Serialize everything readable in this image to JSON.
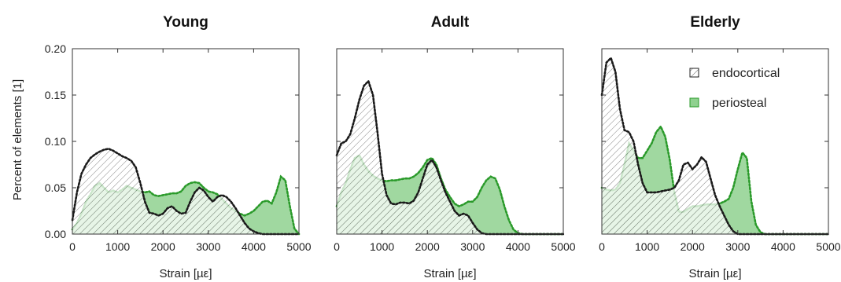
{
  "chart_data": {
    "type": "area",
    "ylabel": "Percent of elements [1]",
    "xlabel": "Strain [µε]",
    "xlim": [
      0,
      5000
    ],
    "ylim": [
      0,
      0.2
    ],
    "xticks": [
      "0",
      "1000",
      "2000",
      "3000",
      "4000",
      "5000"
    ],
    "yticks": [
      "0.00",
      "0.05",
      "0.10",
      "0.15",
      "0.20"
    ],
    "grid": false,
    "legend": {
      "placement": "top-right of the Elderly panel",
      "entries": [
        {
          "label": "endocortical",
          "style": "hatched",
          "color": "#222222"
        },
        {
          "label": "periosteal",
          "style": "filled",
          "color": "#7ccd7c",
          "edge": "#2e9b2e"
        }
      ]
    },
    "colors": {
      "endocortical_edge": "#1a1a1a",
      "periosteal_fill": "#8fd18f",
      "periosteal_edge": "#2a9a2a",
      "hatch": "#555555"
    },
    "panels": [
      {
        "title": "Young",
        "series": [
          {
            "name": "endocortical",
            "x": [
              0,
              100,
              200,
              300,
              400,
              500,
              600,
              700,
              800,
              900,
              1000,
              1100,
              1200,
              1300,
              1400,
              1500,
              1600,
              1700,
              1800,
              1900,
              2000,
              2100,
              2200,
              2300,
              2400,
              2500,
              2600,
              2700,
              2800,
              2900,
              3000,
              3100,
              3200,
              3300,
              3400,
              3500,
              3600,
              3700,
              3800,
              3900,
              4000,
              4100,
              4200,
              4300,
              4400,
              4500,
              4600,
              4700,
              4800,
              4900,
              5000
            ],
            "y": [
              0.015,
              0.045,
              0.065,
              0.075,
              0.082,
              0.086,
              0.089,
              0.091,
              0.092,
              0.09,
              0.087,
              0.084,
              0.082,
              0.079,
              0.072,
              0.055,
              0.035,
              0.023,
              0.022,
              0.02,
              0.022,
              0.028,
              0.03,
              0.025,
              0.022,
              0.023,
              0.035,
              0.045,
              0.05,
              0.047,
              0.04,
              0.035,
              0.04,
              0.042,
              0.04,
              0.035,
              0.028,
              0.02,
              0.012,
              0.006,
              0.003,
              0.001,
              0.0,
              0.0,
              0.0,
              0.0,
              0.0,
              0.0,
              0.0,
              0.0,
              0.0
            ]
          },
          {
            "name": "periosteal",
            "x": [
              0,
              100,
              200,
              300,
              400,
              500,
              600,
              700,
              800,
              900,
              1000,
              1100,
              1200,
              1300,
              1400,
              1500,
              1600,
              1700,
              1800,
              1900,
              2000,
              2100,
              2200,
              2300,
              2400,
              2500,
              2600,
              2700,
              2800,
              2900,
              3000,
              3100,
              3200,
              3300,
              3400,
              3500,
              3600,
              3700,
              3800,
              3900,
              4000,
              4100,
              4200,
              4300,
              4400,
              4500,
              4600,
              4700,
              4800,
              4900,
              5000
            ],
            "y": [
              0.005,
              0.012,
              0.022,
              0.035,
              0.043,
              0.052,
              0.055,
              0.05,
              0.045,
              0.047,
              0.045,
              0.048,
              0.052,
              0.05,
              0.048,
              0.046,
              0.045,
              0.046,
              0.042,
              0.041,
              0.042,
              0.043,
              0.044,
              0.044,
              0.046,
              0.052,
              0.055,
              0.056,
              0.055,
              0.05,
              0.046,
              0.045,
              0.043,
              0.038,
              0.033,
              0.028,
              0.025,
              0.022,
              0.02,
              0.022,
              0.025,
              0.03,
              0.035,
              0.036,
              0.033,
              0.045,
              0.062,
              0.058,
              0.03,
              0.006,
              0.0
            ]
          }
        ]
      },
      {
        "title": "Adult",
        "series": [
          {
            "name": "endocortical",
            "x": [
              0,
              100,
              200,
              300,
              400,
              500,
              600,
              700,
              800,
              900,
              1000,
              1100,
              1200,
              1300,
              1400,
              1500,
              1600,
              1700,
              1800,
              1900,
              2000,
              2100,
              2200,
              2300,
              2400,
              2500,
              2600,
              2700,
              2800,
              2900,
              3000,
              3100,
              3200,
              3300,
              3400,
              3500,
              3600,
              3700,
              3800,
              3900,
              4000,
              4100,
              4200,
              4300,
              4400,
              4500,
              4600,
              4700,
              4800,
              4900,
              5000
            ],
            "y": [
              0.085,
              0.098,
              0.1,
              0.108,
              0.125,
              0.145,
              0.16,
              0.165,
              0.15,
              0.11,
              0.065,
              0.042,
              0.033,
              0.032,
              0.034,
              0.034,
              0.033,
              0.036,
              0.045,
              0.06,
              0.075,
              0.08,
              0.072,
              0.058,
              0.045,
              0.035,
              0.025,
              0.02,
              0.022,
              0.02,
              0.012,
              0.005,
              0.001,
              0.0,
              0.0,
              0.0,
              0.0,
              0.0,
              0.0,
              0.0,
              0.0,
              0.0,
              0.0,
              0.0,
              0.0,
              0.0,
              0.0,
              0.0,
              0.0,
              0.0,
              0.0
            ]
          },
          {
            "name": "periosteal",
            "x": [
              0,
              100,
              200,
              300,
              400,
              500,
              600,
              700,
              800,
              900,
              1000,
              1100,
              1200,
              1300,
              1400,
              1500,
              1600,
              1700,
              1800,
              1900,
              2000,
              2100,
              2200,
              2300,
              2400,
              2500,
              2600,
              2700,
              2800,
              2900,
              3000,
              3100,
              3200,
              3300,
              3400,
              3500,
              3600,
              3700,
              3800,
              3900,
              4000,
              4100,
              4200,
              4300,
              4400,
              4500,
              4600,
              4700,
              4800,
              4900,
              5000
            ],
            "y": [
              0.03,
              0.045,
              0.055,
              0.07,
              0.082,
              0.085,
              0.075,
              0.068,
              0.063,
              0.06,
              0.058,
              0.057,
              0.058,
              0.058,
              0.059,
              0.06,
              0.06,
              0.062,
              0.066,
              0.072,
              0.08,
              0.082,
              0.075,
              0.06,
              0.048,
              0.04,
              0.033,
              0.03,
              0.032,
              0.035,
              0.035,
              0.04,
              0.05,
              0.058,
              0.062,
              0.06,
              0.048,
              0.03,
              0.015,
              0.005,
              0.001,
              0.0,
              0.0,
              0.0,
              0.0,
              0.0,
              0.0,
              0.0,
              0.0,
              0.0,
              0.0
            ]
          }
        ]
      },
      {
        "title": "Elderly",
        "series": [
          {
            "name": "endocortical",
            "x": [
              0,
              100,
              200,
              300,
              400,
              500,
              600,
              700,
              800,
              900,
              1000,
              1100,
              1200,
              1300,
              1400,
              1500,
              1600,
              1700,
              1800,
              1900,
              2000,
              2100,
              2200,
              2300,
              2400,
              2500,
              2600,
              2700,
              2800,
              2900,
              3000,
              3100,
              3200,
              3300,
              3400,
              3500,
              3600,
              3700,
              3800,
              3900,
              4000,
              4100,
              4200,
              4300,
              4400,
              4500,
              4600,
              4700,
              4800,
              4900,
              5000
            ],
            "y": [
              0.15,
              0.185,
              0.19,
              0.175,
              0.135,
              0.112,
              0.11,
              0.1,
              0.075,
              0.055,
              0.045,
              0.045,
              0.045,
              0.046,
              0.047,
              0.048,
              0.05,
              0.058,
              0.075,
              0.077,
              0.07,
              0.075,
              0.083,
              0.078,
              0.06,
              0.042,
              0.03,
              0.02,
              0.01,
              0.003,
              0.0,
              0.0,
              0.0,
              0.0,
              0.0,
              0.0,
              0.0,
              0.0,
              0.0,
              0.0,
              0.0,
              0.0,
              0.0,
              0.0,
              0.0,
              0.0,
              0.0,
              0.0,
              0.0,
              0.0,
              0.0
            ]
          },
          {
            "name": "periosteal",
            "x": [
              0,
              100,
              200,
              300,
              400,
              500,
              600,
              700,
              800,
              900,
              1000,
              1100,
              1200,
              1300,
              1400,
              1500,
              1600,
              1700,
              1800,
              1900,
              2000,
              2100,
              2200,
              2300,
              2400,
              2500,
              2600,
              2700,
              2800,
              2900,
              3000,
              3100,
              3200,
              3300,
              3400,
              3500,
              3600,
              3700,
              3800,
              3900,
              4000,
              4100,
              4200,
              4300,
              4400,
              4500,
              4600,
              4700,
              4800,
              4900,
              5000
            ],
            "y": [
              0.05,
              0.048,
              0.047,
              0.048,
              0.055,
              0.075,
              0.098,
              0.09,
              0.082,
              0.082,
              0.09,
              0.098,
              0.11,
              0.116,
              0.105,
              0.08,
              0.045,
              0.024,
              0.024,
              0.027,
              0.03,
              0.03,
              0.031,
              0.032,
              0.032,
              0.032,
              0.033,
              0.035,
              0.038,
              0.05,
              0.07,
              0.088,
              0.082,
              0.035,
              0.01,
              0.002,
              0.0,
              0.0,
              0.0,
              0.0,
              0.0,
              0.0,
              0.0,
              0.0,
              0.0,
              0.0,
              0.0,
              0.0,
              0.0,
              0.0,
              0.0
            ]
          }
        ]
      }
    ]
  }
}
